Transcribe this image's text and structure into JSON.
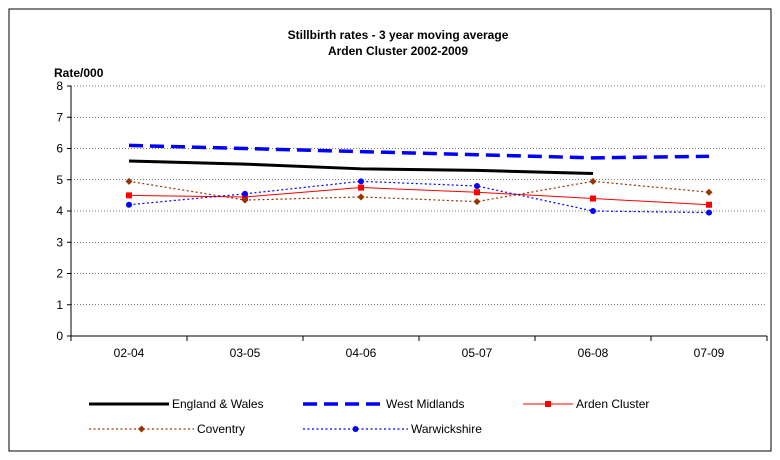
{
  "chart_data": {
    "type": "line",
    "title": "Stillbirth rates - 3 year moving average",
    "subtitle": "Arden Cluster 2002-2009",
    "ylabel": "Rate/000",
    "xlabel": "",
    "categories": [
      "02-04",
      "03-05",
      "04-06",
      "05-07",
      "06-08",
      "07-09"
    ],
    "ylim": [
      0,
      8
    ],
    "yticks": [
      0,
      1,
      2,
      3,
      4,
      5,
      6,
      7,
      8
    ],
    "grid": true,
    "legend_position": "bottom",
    "series": [
      {
        "name": "England & Wales",
        "values": [
          5.6,
          5.5,
          5.35,
          5.3,
          5.2,
          null
        ],
        "color": "#000000",
        "style": "solid-thick",
        "marker": "none"
      },
      {
        "name": "West Midlands",
        "values": [
          6.1,
          6.0,
          5.9,
          5.8,
          5.7,
          5.75
        ],
        "color": "#0000ff",
        "style": "dashed-thick",
        "marker": "none"
      },
      {
        "name": "Arden Cluster",
        "values": [
          4.5,
          4.45,
          4.75,
          4.6,
          4.4,
          4.2
        ],
        "color": "#ff0000",
        "style": "solid",
        "marker": "square"
      },
      {
        "name": "Coventry",
        "values": [
          4.95,
          4.35,
          4.45,
          4.3,
          4.95,
          4.6
        ],
        "color": "#993300",
        "style": "dotted",
        "marker": "diamond"
      },
      {
        "name": "Warwickshire",
        "values": [
          4.2,
          4.55,
          4.95,
          4.8,
          4.0,
          3.95
        ],
        "color": "#0000ff",
        "style": "dotted",
        "marker": "circle"
      }
    ]
  }
}
